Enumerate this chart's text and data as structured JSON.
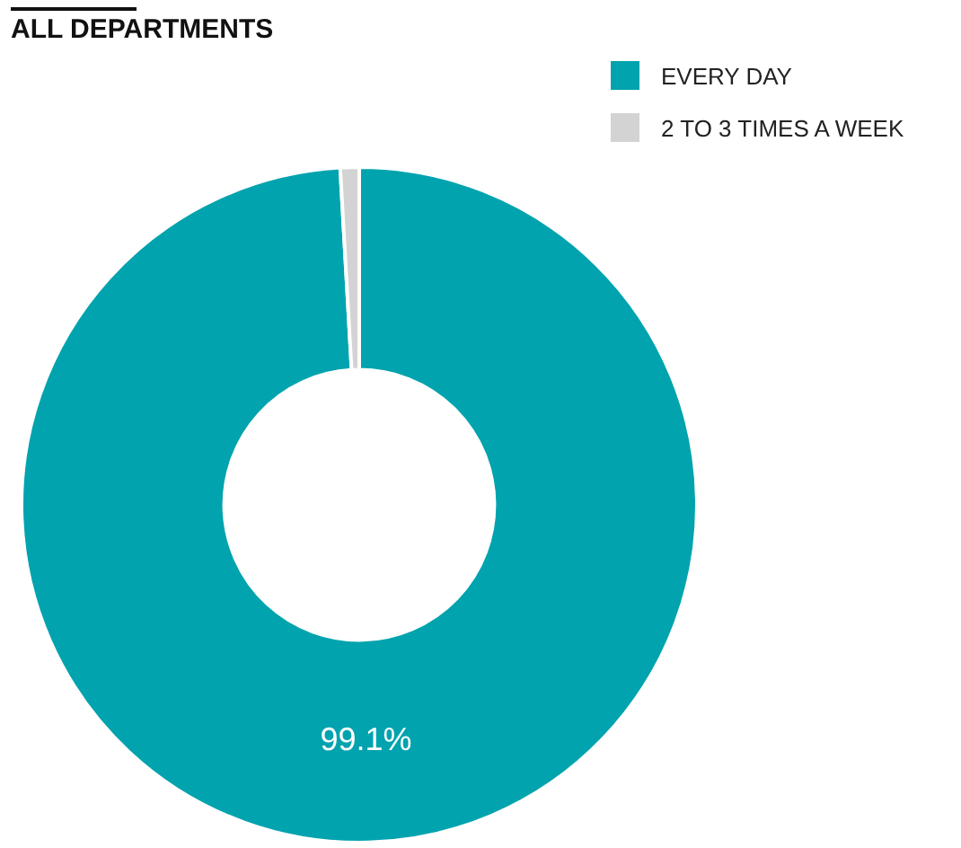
{
  "chart_data": {
    "type": "donut",
    "title": "ALL DEPARTMENTS",
    "categories": [
      "EVERY DAY",
      "2 TO 3 TIMES A WEEK"
    ],
    "values": [
      99.1,
      0.9
    ],
    "colors": [
      "#00a3ae",
      "#d3d3d3"
    ],
    "value_labels": [
      "99.1%",
      null
    ],
    "legend": "top right"
  }
}
